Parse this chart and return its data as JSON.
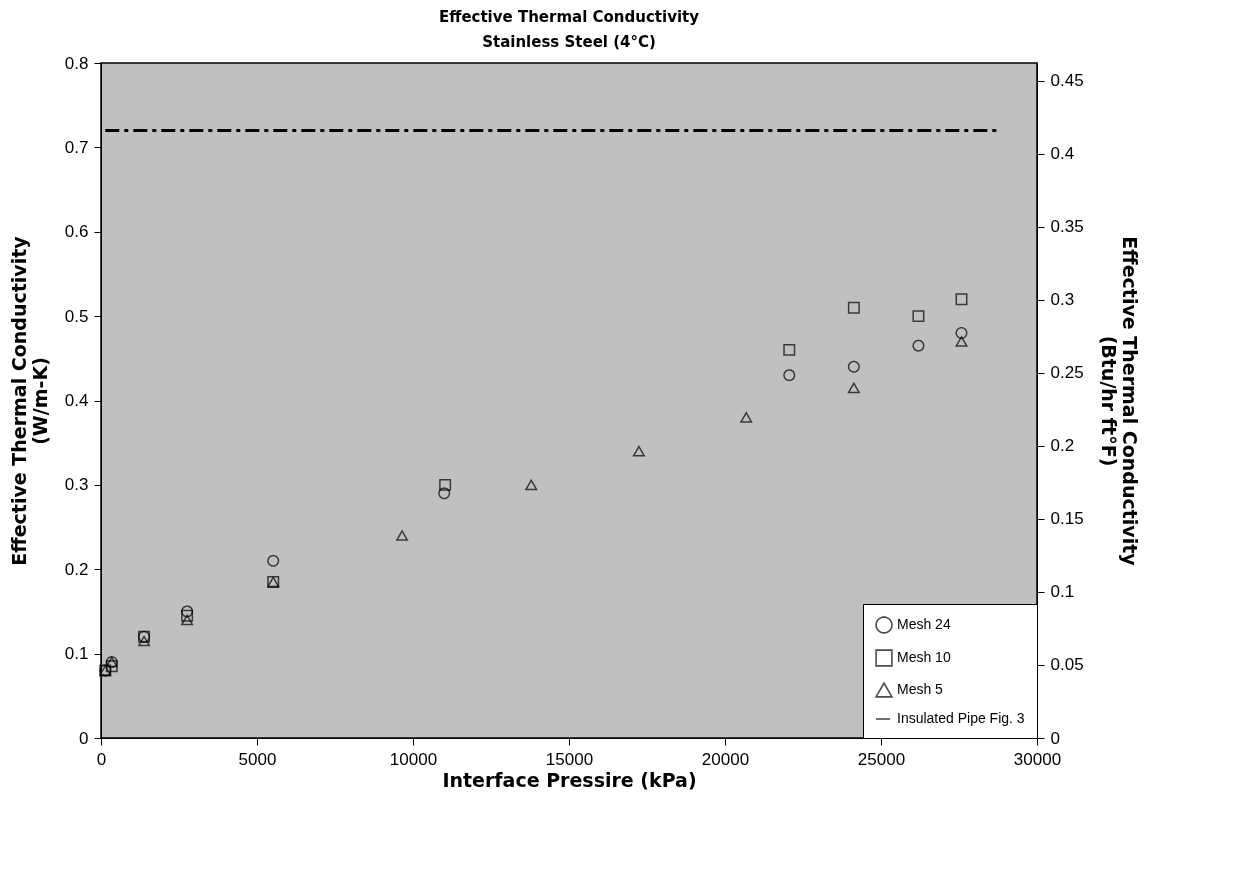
{
  "chart_data": {
    "type": "scatter",
    "title": "Effective Thermal Conductivity",
    "subtitle": "Stainless Steel (4°C)",
    "xlabel": "Interface Pressire (kPa)",
    "ylabel": "Effective Thermal Conductivity\n(W/m-K)",
    "y2label": "Effective Thermal Conductivity\n(Btu/hr ft°F)",
    "xlim": [
      0,
      30000
    ],
    "xticks": [
      0,
      5000,
      10000,
      15000,
      20000,
      25000,
      30000
    ],
    "ylim": [
      0,
      0.8
    ],
    "yticks": [
      0,
      0.1,
      0.2,
      0.3,
      0.4,
      0.5,
      0.6,
      0.7,
      0.8
    ],
    "y2lim": [
      0,
      0.462
    ],
    "y2ticks": [
      0,
      0.05,
      0.1,
      0.15,
      0.2,
      0.25,
      0.3,
      0.35,
      0.4,
      0.45
    ],
    "grid": false,
    "legend": "bottom right",
    "series": [
      {
        "name": "Mesh 24",
        "color": "#000000",
        "marker": "circle",
        "x": [
          138,
          345,
          1380,
          2760,
          5520,
          11000,
          22060,
          24130,
          26200,
          27580
        ],
        "values": [
          0.08,
          0.09,
          0.12,
          0.15,
          0.21,
          0.29,
          0.43,
          0.44,
          0.465,
          0.48
        ]
      },
      {
        "name": "Mesh 10",
        "color": "#000000",
        "marker": "square",
        "x": [
          138,
          345,
          1380,
          2760,
          5520,
          11030,
          22060,
          24130,
          26200,
          27580
        ],
        "values": [
          0.08,
          0.085,
          0.12,
          0.145,
          0.185,
          0.3,
          0.46,
          0.51,
          0.5,
          0.52
        ]
      },
      {
        "name": "Mesh 5",
        "color": "#000000",
        "marker": "triangle",
        "x": [
          138,
          345,
          1380,
          2760,
          5520,
          9650,
          13790,
          17240,
          20680,
          24130,
          27580
        ],
        "values": [
          0.08,
          0.09,
          0.115,
          0.14,
          0.185,
          0.24,
          0.3,
          0.34,
          0.38,
          0.415,
          0.47
        ]
      },
      {
        "name": "Insulated Pipe Fig. 3",
        "type": "line",
        "color": "#000000",
        "line_style": "dashed",
        "marker": "none",
        "x": [
          138,
          28800
        ],
        "values": [
          0.72,
          0.72
        ]
      }
    ]
  }
}
